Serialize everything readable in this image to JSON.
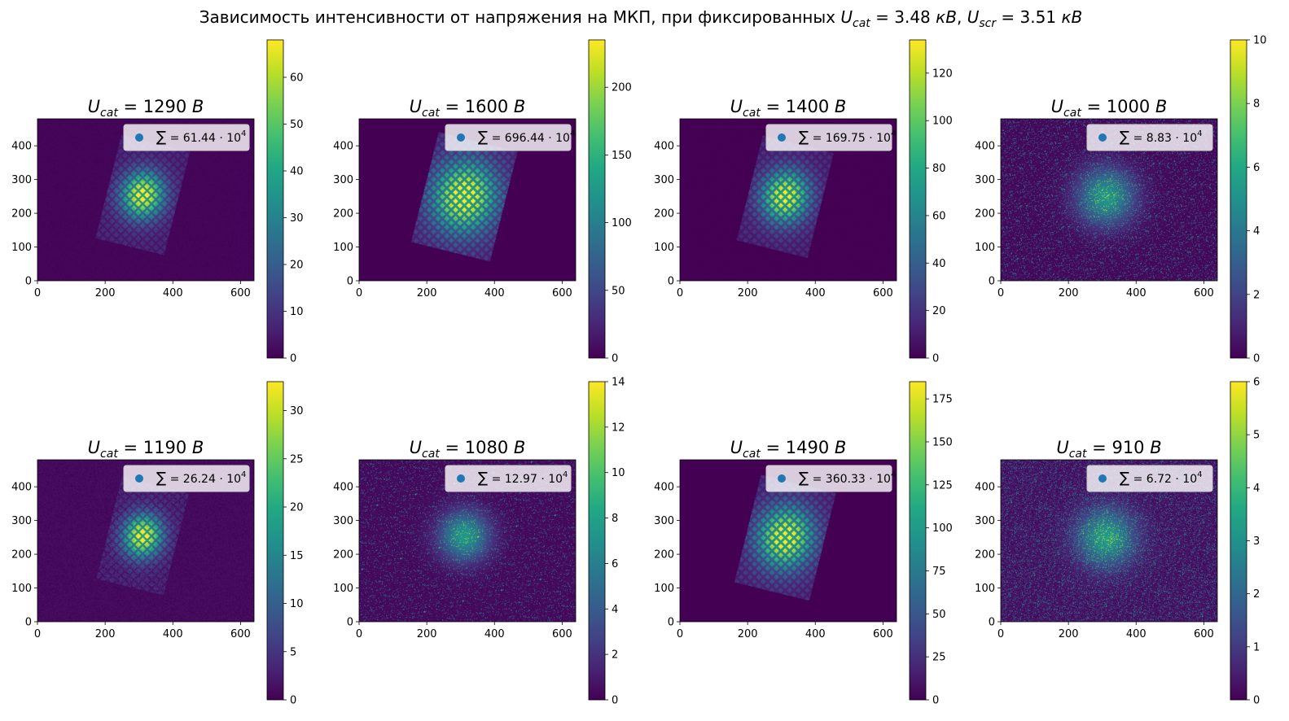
{
  "figure": {
    "suptitle": {
      "prefix": "Зависимость интенсивности от напряжения на МКП, при фиксированных ",
      "u1_var": "U",
      "u1_sub": "cat",
      "u1_eq": " = 3.48 ",
      "u1_unit": "кВ",
      "sep": ", ",
      "u2_var": "U",
      "u2_sub": "scr",
      "u2_eq": " = 3.51 ",
      "u2_unit": "кВ"
    },
    "title_var": "U",
    "title_sub": "cat",
    "title_unit": "B",
    "legend_sum_symbol": "∑",
    "legend_mult": " · 10",
    "legend_exp": "4",
    "colormap": "viridis"
  },
  "chart_data": [
    {
      "type": "heatmap",
      "title_value": "1290",
      "sum_value": "61.44",
      "xlim": [
        0,
        640
      ],
      "ylim": [
        0,
        480
      ],
      "xticks": [
        0,
        200,
        400,
        600
      ],
      "yticks": [
        0,
        100,
        200,
        300,
        400
      ],
      "colorbar_range": [
        0,
        68
      ],
      "colorbar_ticks": [
        0,
        10,
        20,
        30,
        40,
        50,
        60
      ],
      "image_shape": "tilted-grid",
      "cx": 310,
      "cy": 255,
      "peak": 68,
      "spread": 0.85,
      "noise": 0.05,
      "background": 1
    },
    {
      "type": "heatmap",
      "title_value": "1600",
      "sum_value": "696.44",
      "xlim": [
        0,
        640
      ],
      "ylim": [
        0,
        480
      ],
      "xticks": [
        0,
        200,
        400,
        600
      ],
      "yticks": [
        0,
        100,
        200,
        300,
        400
      ],
      "colorbar_range": [
        0,
        235
      ],
      "colorbar_ticks": [
        0,
        50,
        100,
        150,
        200
      ],
      "image_shape": "tilted-grid",
      "cx": 310,
      "cy": 250,
      "peak": 235,
      "spread": 1.5,
      "noise": 0.02,
      "background": 0
    },
    {
      "type": "heatmap",
      "title_value": "1400",
      "sum_value": "169.75",
      "xlim": [
        0,
        640
      ],
      "ylim": [
        0,
        480
      ],
      "xticks": [
        0,
        200,
        400,
        600
      ],
      "yticks": [
        0,
        100,
        200,
        300,
        400
      ],
      "colorbar_range": [
        0,
        134
      ],
      "colorbar_ticks": [
        0,
        20,
        40,
        60,
        80,
        100,
        120
      ],
      "image_shape": "tilted-grid",
      "cx": 310,
      "cy": 250,
      "peak": 134,
      "spread": 1.0,
      "noise": 0.03,
      "background": 0
    },
    {
      "type": "heatmap",
      "title_value": "1000",
      "sum_value": "8.83",
      "xlim": [
        0,
        640
      ],
      "ylim": [
        0,
        480
      ],
      "xticks": [
        0,
        200,
        400,
        600
      ],
      "yticks": [
        0,
        100,
        200,
        300,
        400
      ],
      "colorbar_range": [
        0,
        10
      ],
      "colorbar_ticks": [
        0,
        2,
        4,
        6,
        8,
        10
      ],
      "image_shape": "noisy-blob",
      "cx": 310,
      "cy": 250,
      "peak": 10,
      "spread": 0.9,
      "noise": 0.45,
      "background": 0.5
    },
    {
      "type": "heatmap",
      "title_value": "1190",
      "sum_value": "26.24",
      "xlim": [
        0,
        640
      ],
      "ylim": [
        0,
        480
      ],
      "xticks": [
        0,
        200,
        400,
        600
      ],
      "yticks": [
        0,
        100,
        200,
        300,
        400
      ],
      "colorbar_range": [
        0,
        33
      ],
      "colorbar_ticks": [
        0,
        5,
        10,
        15,
        20,
        25,
        30
      ],
      "image_shape": "tilted-grid",
      "cx": 310,
      "cy": 255,
      "peak": 33,
      "spread": 0.75,
      "noise": 0.12,
      "background": 1
    },
    {
      "type": "heatmap",
      "title_value": "1080",
      "sum_value": "12.97",
      "xlim": [
        0,
        640
      ],
      "ylim": [
        0,
        480
      ],
      "xticks": [
        0,
        200,
        400,
        600
      ],
      "yticks": [
        0,
        100,
        200,
        300,
        400
      ],
      "colorbar_range": [
        0,
        14
      ],
      "colorbar_ticks": [
        0,
        2,
        4,
        6,
        8,
        10,
        12,
        14
      ],
      "image_shape": "noisy-blob",
      "cx": 310,
      "cy": 255,
      "peak": 14,
      "spread": 0.75,
      "noise": 0.3,
      "background": 0.8
    },
    {
      "type": "heatmap",
      "title_value": "1490",
      "sum_value": "360.33",
      "xlim": [
        0,
        640
      ],
      "ylim": [
        0,
        480
      ],
      "xticks": [
        0,
        200,
        400,
        600
      ],
      "yticks": [
        0,
        100,
        200,
        300,
        400
      ],
      "colorbar_range": [
        0,
        185
      ],
      "colorbar_ticks": [
        0,
        25,
        50,
        75,
        100,
        125,
        150,
        175
      ],
      "image_shape": "tilted-grid",
      "cx": 310,
      "cy": 250,
      "peak": 185,
      "spread": 1.25,
      "noise": 0.02,
      "background": 0
    },
    {
      "type": "heatmap",
      "title_value": "910",
      "sum_value": "6.72",
      "xlim": [
        0,
        640
      ],
      "ylim": [
        0,
        480
      ],
      "xticks": [
        0,
        200,
        400,
        600
      ],
      "yticks": [
        0,
        100,
        200,
        300,
        400
      ],
      "colorbar_range": [
        0,
        6
      ],
      "colorbar_ticks": [
        0,
        1,
        2,
        3,
        4,
        5,
        6
      ],
      "image_shape": "noisy-blob",
      "cx": 310,
      "cy": 250,
      "peak": 6,
      "spread": 0.9,
      "noise": 0.55,
      "background": 0.6
    }
  ]
}
